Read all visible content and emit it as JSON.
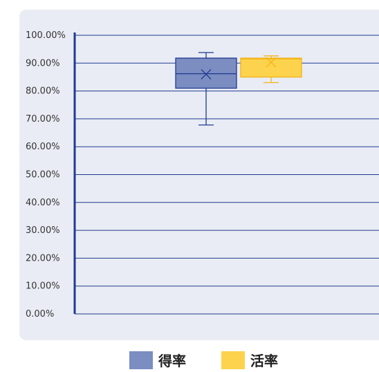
{
  "chart_data": {
    "type": "box",
    "ylim": [
      0,
      100
    ],
    "y_ticks": [
      "0.00%",
      "10.00%",
      "20.00%",
      "30.00%",
      "40.00%",
      "50.00%",
      "60.00%",
      "70.00%",
      "80.00%",
      "90.00%",
      "100.00%"
    ],
    "grid": true,
    "legend_position": "bottom",
    "series": [
      {
        "name": "得率",
        "color": "#7b8dc1",
        "stroke": "#1f3a8f",
        "min": 67.8,
        "q1": 81.0,
        "median": 86.2,
        "mean": 86.0,
        "q3": 91.8,
        "max": 93.8
      },
      {
        "name": "活率",
        "color": "#fdd34d",
        "stroke": "#f2b418",
        "min": 83.0,
        "q1": 85.0,
        "median": 91.5,
        "mean": 90.3,
        "q3": 91.8,
        "max": 92.6
      }
    ]
  }
}
